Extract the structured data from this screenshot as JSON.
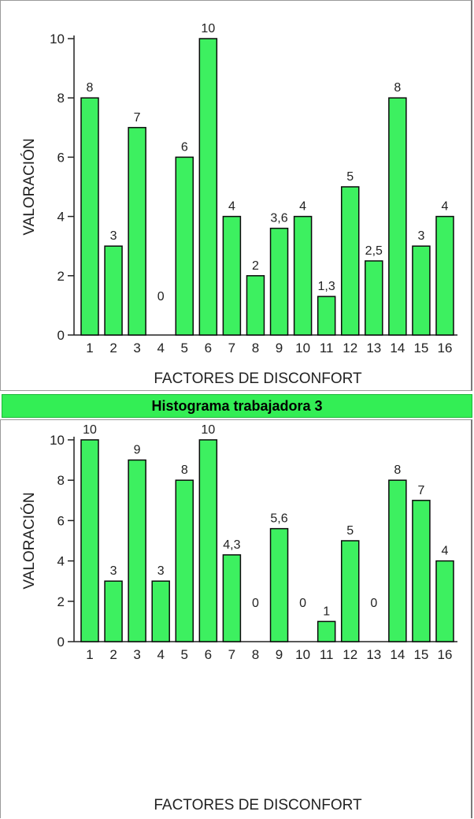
{
  "histogram_caption": "Histograma trabajadora 3",
  "colors": {
    "bar_fill": "#3df060",
    "bar_stroke": "#0a0a0a",
    "banner": "#33ee55"
  },
  "chart_data": [
    {
      "type": "bar",
      "title": "",
      "xlabel": "FACTORES DE DISCONFORT",
      "ylabel": "VALORACIÓN",
      "ylim": [
        0,
        10
      ],
      "yticks": [
        "0",
        "2",
        "4",
        "6",
        "8",
        "10"
      ],
      "categories": [
        "1",
        "2",
        "3",
        "4",
        "5",
        "6",
        "7",
        "8",
        "9",
        "10",
        "11",
        "12",
        "13",
        "14",
        "15",
        "16"
      ],
      "values": [
        8,
        3,
        7,
        0,
        6,
        10,
        4,
        2,
        3.6,
        4,
        1.3,
        5,
        2.5,
        8,
        3,
        4
      ],
      "value_labels": [
        "8",
        "3",
        "7",
        "0",
        "6",
        "10",
        "4",
        "2",
        "3,6",
        "4",
        "1,3",
        "5",
        "2,5",
        "8",
        "3",
        "4"
      ]
    },
    {
      "type": "bar",
      "title": "",
      "xlabel": "FACTORES DE DISCONFORT",
      "ylabel": "VALORACIÓN",
      "ylim": [
        0,
        10
      ],
      "yticks": [
        "0",
        "2",
        "4",
        "6",
        "8",
        "10"
      ],
      "categories": [
        "1",
        "2",
        "3",
        "4",
        "5",
        "6",
        "7",
        "8",
        "9",
        "10",
        "11",
        "12",
        "13",
        "14",
        "15",
        "16"
      ],
      "values": [
        10,
        3,
        9,
        3,
        8,
        10,
        4.3,
        0,
        5.6,
        0,
        1,
        5,
        0,
        8,
        7,
        4
      ],
      "value_labels": [
        "10",
        "3",
        "9",
        "3",
        "8",
        "10",
        "4,3",
        "0",
        "5,6",
        "0",
        "1",
        "5",
        "0",
        "8",
        "7",
        "4"
      ]
    }
  ]
}
